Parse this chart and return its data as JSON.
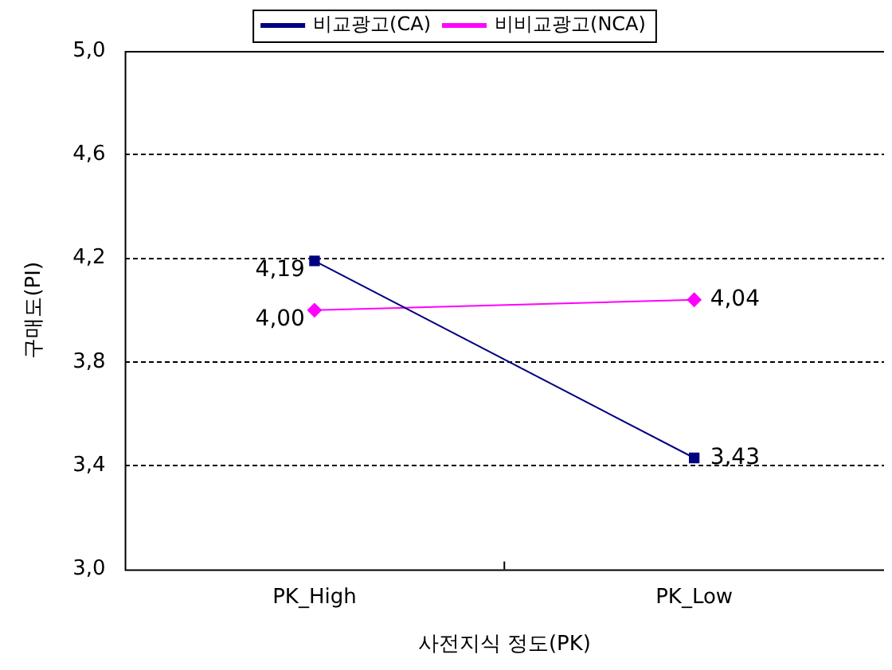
{
  "chart_data": {
    "type": "line",
    "xlabel": "사전지식 정도(PK)",
    "ylabel": "구매도(PI)",
    "categories": [
      "PK_High",
      "PK_Low"
    ],
    "series": [
      {
        "name": "비교광고(CA)",
        "color": "#000080",
        "values": [
          4.19,
          3.43
        ],
        "value_labels": [
          "4,19",
          "3,43"
        ],
        "marker": "square"
      },
      {
        "name": "비비교광고(NCA)",
        "color": "#ff00ff",
        "values": [
          4.0,
          4.04
        ],
        "value_labels": [
          "4,00",
          "4,04"
        ],
        "marker": "diamond"
      }
    ],
    "ylim": [
      3.0,
      5.0
    ],
    "yticks": [
      {
        "value": 3.0,
        "label": "3,0"
      },
      {
        "value": 3.4,
        "label": "3,4"
      },
      {
        "value": 3.8,
        "label": "3,8"
      },
      {
        "value": 4.2,
        "label": "4,2"
      },
      {
        "value": 4.6,
        "label": "4,6"
      },
      {
        "value": 5.0,
        "label": "5,0"
      }
    ],
    "grid": "y",
    "legend": "top",
    "line_style": "solid"
  }
}
